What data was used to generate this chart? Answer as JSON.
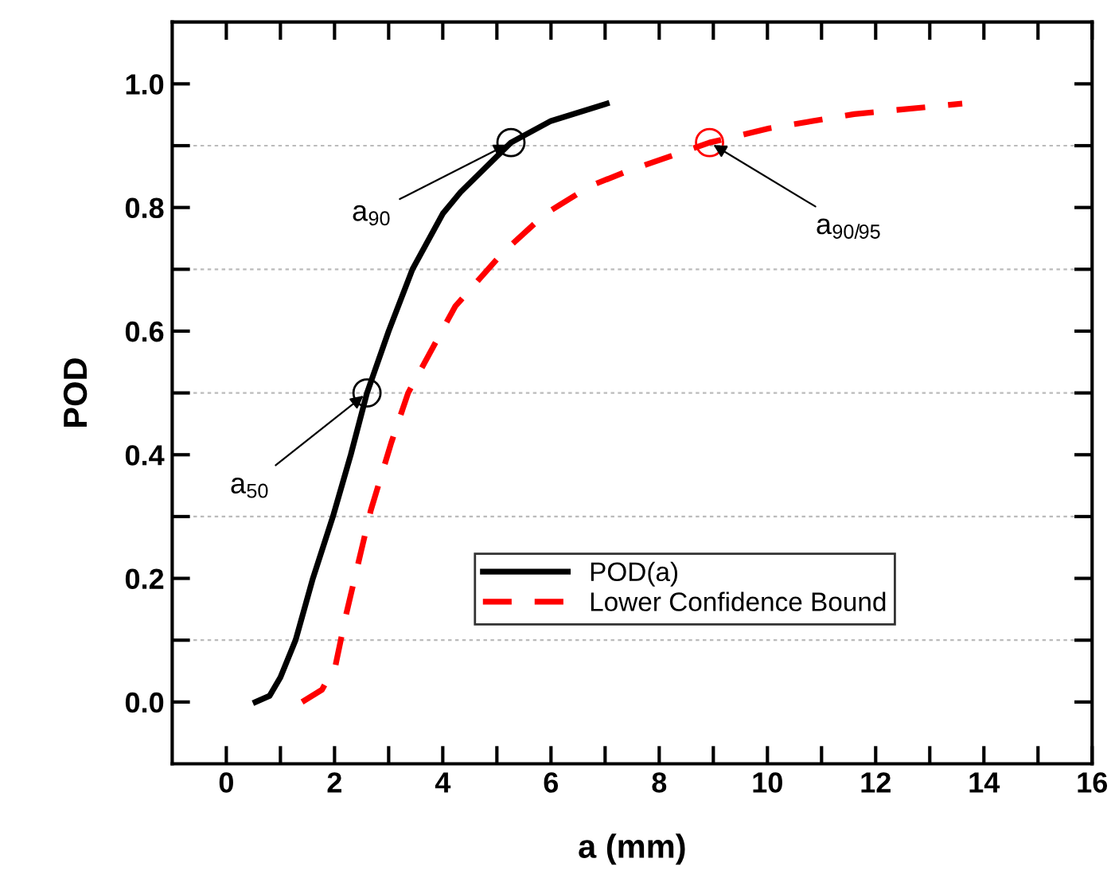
{
  "chart_data": {
    "type": "line",
    "xlabel": "a (mm)",
    "ylabel": "POD",
    "xlim": [
      -1,
      16
    ],
    "ylim": [
      -0.1,
      1.1
    ],
    "xticks": [
      0,
      {
        "value": 1,
        "label": null
      },
      2,
      {
        "value": 3,
        "label": null
      },
      4,
      {
        "value": 5,
        "label": null
      },
      6,
      {
        "value": 7,
        "label": null
      },
      8,
      {
        "value": 9,
        "label": null
      },
      10,
      {
        "value": 11,
        "label": null
      },
      12,
      {
        "value": 13,
        "label": null
      },
      14,
      {
        "value": 15,
        "label": null
      },
      16
    ],
    "yticks": [
      {
        "value": 0,
        "label": "0.0"
      },
      {
        "value": 0.1,
        "label": null
      },
      {
        "value": 0.2,
        "label": "0.2"
      },
      {
        "value": 0.3,
        "label": null
      },
      {
        "value": 0.4,
        "label": "0.4"
      },
      {
        "value": 0.5,
        "label": null
      },
      {
        "value": 0.6,
        "label": "0.6"
      },
      {
        "value": 0.7,
        "label": null
      },
      {
        "value": 0.8,
        "label": "0.8"
      },
      {
        "value": 0.9,
        "label": null
      },
      {
        "value": 1.0,
        "label": "1.0"
      }
    ],
    "grid": "y",
    "legend": "bottom right",
    "series": [
      {
        "name": "POD(a)",
        "color": "#000000",
        "line_style": "solid",
        "x": [
          0.54,
          0.8,
          1.0,
          1.28,
          1.6,
          1.97,
          2.3,
          2.6,
          3.0,
          3.44,
          4.0,
          4.33,
          5.26,
          6.0,
          7.03
        ],
        "values": [
          0.0,
          0.01,
          0.04,
          0.1,
          0.2,
          0.3,
          0.4,
          0.5,
          0.6,
          0.7,
          0.79,
          0.825,
          0.905,
          0.94,
          0.968
        ]
      },
      {
        "name": "Lower Confidence Bound",
        "color": "#ff0000",
        "line_style": "dashed",
        "x": [
          1.4,
          1.77,
          2.02,
          2.21,
          2.48,
          2.67,
          3.05,
          3.36,
          4.23,
          5.11,
          5.9,
          6.73,
          7.42,
          8.93,
          10.03,
          11.6,
          13.6
        ],
        "values": [
          0.0,
          0.02,
          0.06,
          0.14,
          0.24,
          0.31,
          0.42,
          0.5,
          0.64,
          0.727,
          0.79,
          0.835,
          0.859,
          0.905,
          0.928,
          0.951,
          0.968
        ]
      },
      {
        "type": "scatter",
        "marker": "circle",
        "color": "#000000",
        "x": [
          2.6,
          5.26
        ],
        "values": [
          0.5,
          0.905
        ]
      },
      {
        "type": "scatter",
        "marker": "circle",
        "color": "#ff0000",
        "x": [
          8.93
        ],
        "values": [
          0.905
        ]
      }
    ],
    "annotations": [
      {
        "text": "a$_{50}$",
        "x": 2.6,
        "y": 0.5
      },
      {
        "text": "a$_{90}$",
        "x": 5.26,
        "y": 0.905
      },
      {
        "text": "a$_{90/95}$",
        "x": 8.93,
        "y": 0.905
      }
    ]
  }
}
